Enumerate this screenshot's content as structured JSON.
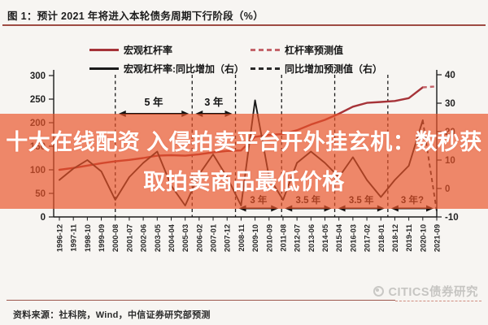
{
  "title": {
    "text": "图 1：预计 2021 年将进入本轮债务周期下行阶段（%）"
  },
  "legend": [
    {
      "label": "宏观杠杆率",
      "style": "solid",
      "color": "#a63338"
    },
    {
      "label": "杠杆率预测值",
      "style": "dashed",
      "color": "#c4646a"
    },
    {
      "label": "宏观杠杆率:同比增加（右）",
      "style": "solid",
      "color": "#1a1a1a"
    },
    {
      "label": "同比增加预测值（右）",
      "style": "dashed",
      "color": "#2a2a2a"
    }
  ],
  "overlay_banner": {
    "line1": "十大在线配资 入侵拍卖平台开外挂玄机：数秒获",
    "line2": "取拍卖商品最低价格",
    "background_color": "rgba(233,82,40,0.68)",
    "text_color": "#ffffff"
  },
  "chart_data": {
    "type": "line",
    "title": "预计 2021 年将进入本轮债务周期下行阶段（%）",
    "categories": [
      "1996-12",
      "1997-11",
      "1998-10",
      "1999-09",
      "2000-08",
      "2001-07",
      "2002-06",
      "2003-05",
      "2004-04",
      "2005-03",
      "2006-02",
      "2007-01",
      "2007-12",
      "2008-11",
      "2009-10",
      "2010-09",
      "2011-08",
      "2012-07",
      "2013-06",
      "2014-05",
      "2015-04",
      "2016-03",
      "2017-02",
      "2018-01",
      "2018-12",
      "2019-11",
      "2020-10",
      "2021-09"
    ],
    "series": [
      {
        "name": "宏观杠杆率",
        "axis": "left",
        "color": "#a63338",
        "forecast_color": "#c4646a",
        "solid_until_index": 26,
        "values": [
          100,
          104,
          109,
          114,
          118,
          121,
          125,
          130,
          131,
          130,
          133,
          137,
          140,
          141,
          170,
          174,
          176,
          184,
          196,
          206,
          219,
          234,
          242,
          244,
          246,
          252,
          275,
          277
        ]
      },
      {
        "name": "宏观杠杆率:同比增加（右）",
        "axis": "right",
        "color": "#1a1a1a",
        "forecast_color": "#2a2a2a",
        "solid_until_index": 26,
        "values": [
          3,
          7,
          10,
          6,
          -4,
          4,
          9,
          13,
          1,
          -6,
          5,
          12,
          4,
          -6,
          31,
          4,
          -4,
          9,
          13,
          9,
          4,
          11,
          3,
          -3,
          3,
          8,
          24,
          -8
        ]
      }
    ],
    "left_axis": {
      "min": 0,
      "max": 300,
      "step": 50,
      "labels": [
        "0",
        "50",
        "100",
        "150",
        "200",
        "250",
        "300"
      ]
    },
    "right_axis": {
      "min": -10,
      "max": 40,
      "step": 10,
      "labels": [
        "-10",
        "0",
        "10",
        "20",
        "30",
        "40"
      ]
    },
    "grid": false,
    "legend_position": "top",
    "cycle_dividers_index": [
      4,
      9.5,
      12.6,
      15.9,
      19.7,
      23.5
    ],
    "annotations": [
      {
        "label": "5 年",
        "from": 4,
        "to": 9.5,
        "row": "top"
      },
      {
        "label": "3 年",
        "from": 9.5,
        "to": 12.6,
        "row": "top"
      },
      {
        "label": "3 年",
        "from": 12.6,
        "to": 15.9,
        "row": "bottom"
      },
      {
        "label": "3.5 年",
        "from": 15.9,
        "to": 19.7,
        "row": "bottom"
      },
      {
        "label": "3.5 年",
        "from": 19.7,
        "to": 23.5,
        "row": "bottom"
      },
      {
        "label": "3 年?",
        "from": 23.5,
        "to": 27,
        "row": "bottom"
      }
    ]
  },
  "watermark": {
    "text": "CITICS债券研究"
  },
  "source": {
    "text": "资料来源：社科院，Wind，中信证券研究部预测"
  }
}
